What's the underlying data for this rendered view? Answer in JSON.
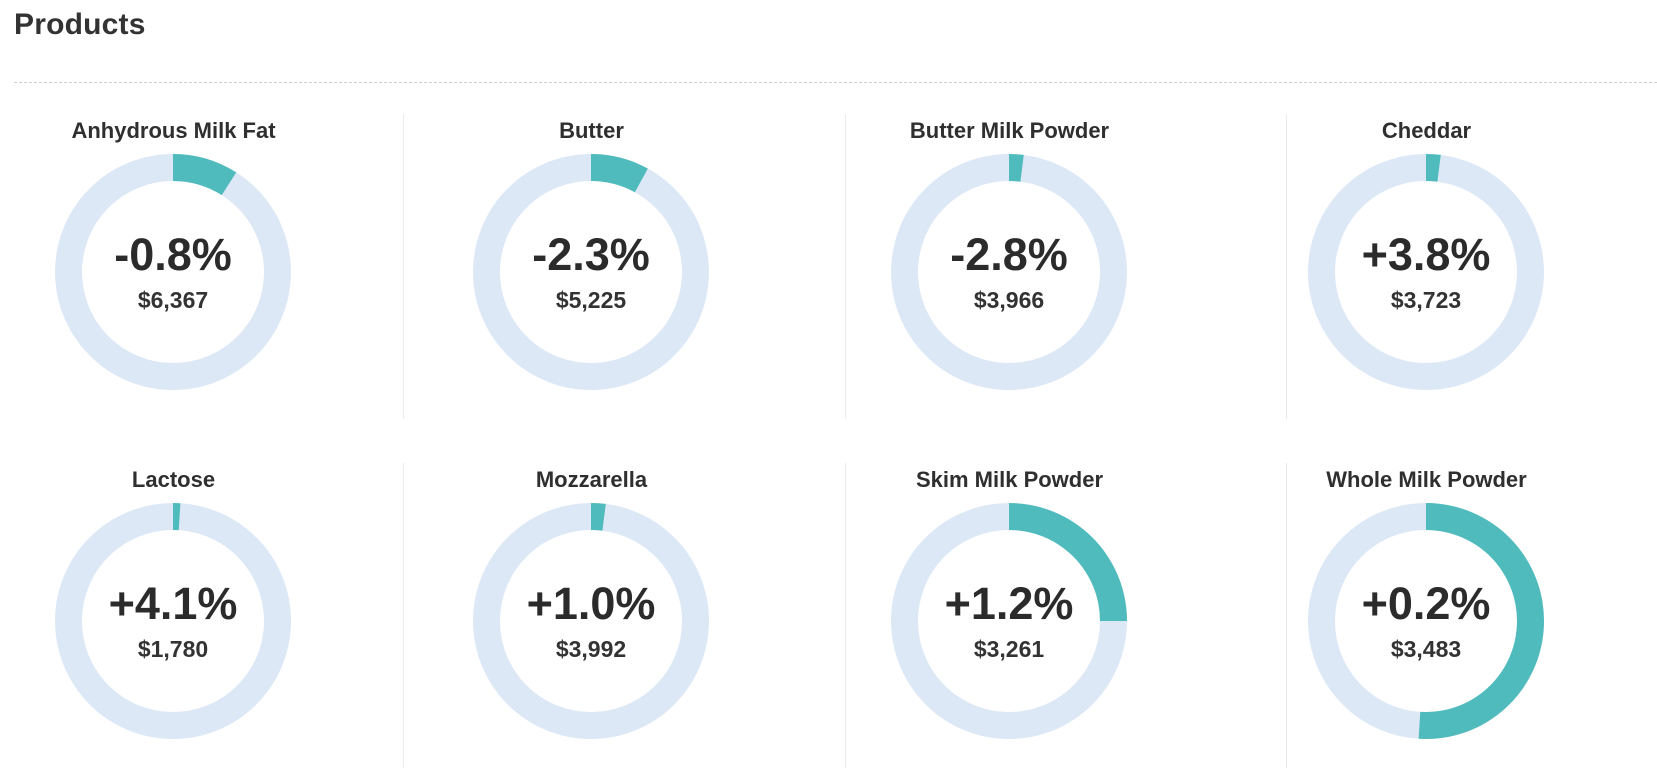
{
  "header": {
    "title": "Products"
  },
  "colors": {
    "track": "#dde8f6",
    "fill": "#4fbbbd",
    "text": "#2b2b2b"
  },
  "chart_data": {
    "type": "donut-grid",
    "items": [
      {
        "name": "Anhydrous Milk Fat",
        "change": "-0.8%",
        "price": "$6,367",
        "fraction": 0.09
      },
      {
        "name": "Butter",
        "change": "-2.3%",
        "price": "$5,225",
        "fraction": 0.08
      },
      {
        "name": "Butter Milk Powder",
        "change": "-2.8%",
        "price": "$3,966",
        "fraction": 0.02
      },
      {
        "name": "Cheddar",
        "change": "+3.8%",
        "price": "$3,723",
        "fraction": 0.02
      },
      {
        "name": "Lactose",
        "change": "+4.1%",
        "price": "$1,780",
        "fraction": 0.01
      },
      {
        "name": "Mozzarella",
        "change": "+1.0%",
        "price": "$3,992",
        "fraction": 0.02
      },
      {
        "name": "Skim Milk Powder",
        "change": "+1.2%",
        "price": "$3,261",
        "fraction": 0.25
      },
      {
        "name": "Whole Milk Powder",
        "change": "+0.2%",
        "price": "$3,483",
        "fraction": 0.51
      }
    ]
  }
}
